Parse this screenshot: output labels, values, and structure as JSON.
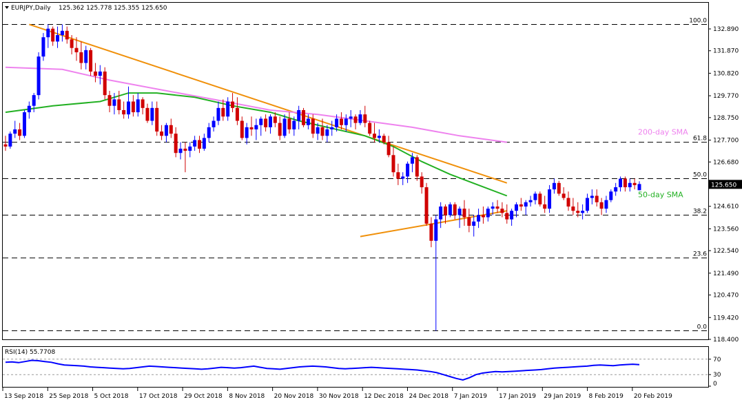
{
  "header": {
    "symbol": "EURJPY,Daily",
    "ohlc": "125.362 125.778 125.355 125.650"
  },
  "colors": {
    "bull": "#0000ff",
    "bear": "#d00000",
    "sma50": "#22b022",
    "sma200": "#ee82ee",
    "trend": "#f0900a",
    "rsi": "#0000ff",
    "last_price_bg": "#000000",
    "last_price_fg": "#ffffff"
  },
  "chart_data": {
    "type": "candlestick",
    "title": "EURJPY,Daily",
    "price_axis": {
      "ylim": [
        118.4,
        133.5
      ],
      "ticks": [
        "132.890",
        "131.870",
        "130.820",
        "129.770",
        "128.750",
        "127.700",
        "126.680",
        "125.630",
        "124.610",
        "123.560",
        "122.540",
        "121.490",
        "120.470",
        "119.420",
        "118.400"
      ]
    },
    "last_price": "125.650",
    "x_tick_labels": [
      "13 Sep 2018",
      "25 Sep 2018",
      "5 Oct 2018",
      "17 Oct 2018",
      "29 Oct 2018",
      "8 Nov 2018",
      "20 Nov 2018",
      "30 Nov 2018",
      "12 Dec 2018",
      "24 Dec 2018",
      "7 Jan 2019",
      "17 Jan 2019",
      "29 Jan 2019",
      "8 Feb 2019",
      "20 Feb 2019"
    ],
    "fibonacci": [
      {
        "label": "100.0",
        "price": 133.1
      },
      {
        "label": "61.8",
        "price": 127.6
      },
      {
        "label": "50.0",
        "price": 125.9
      },
      {
        "label": "38.2",
        "price": 124.2
      },
      {
        "label": "23.6",
        "price": 122.2
      },
      {
        "label": "0.0",
        "price": 118.8
      }
    ],
    "annotations": {
      "sma200": "200-day SMA",
      "sma50": "50-day SMA"
    },
    "trendlines": [
      {
        "from": [
          5,
          133.1
        ],
        "to": [
          106,
          125.7
        ]
      },
      {
        "from": [
          75,
          123.2
        ],
        "to": [
          106,
          124.4
        ]
      }
    ],
    "candles": [
      [
        127.5,
        127.9,
        127.2,
        127.4
      ],
      [
        127.4,
        128.1,
        127.3,
        128.0
      ],
      [
        128.0,
        128.6,
        127.8,
        128.2
      ],
      [
        128.2,
        128.5,
        127.7,
        127.9
      ],
      [
        127.9,
        129.1,
        127.8,
        129.0
      ],
      [
        129.0,
        129.5,
        128.7,
        129.3
      ],
      [
        129.3,
        129.9,
        129.0,
        129.8
      ],
      [
        129.8,
        131.8,
        129.6,
        131.6
      ],
      [
        131.6,
        132.7,
        131.4,
        132.5
      ],
      [
        132.5,
        133.1,
        132.0,
        132.9
      ],
      [
        132.9,
        133.0,
        132.1,
        132.3
      ],
      [
        132.3,
        133.0,
        132.0,
        132.6
      ],
      [
        132.6,
        133.1,
        132.3,
        132.8
      ],
      [
        132.8,
        133.0,
        132.2,
        132.4
      ],
      [
        132.4,
        132.6,
        131.7,
        132.0
      ],
      [
        132.0,
        132.5,
        131.4,
        131.8
      ],
      [
        131.8,
        132.3,
        131.0,
        131.3
      ],
      [
        131.3,
        132.1,
        131.0,
        131.9
      ],
      [
        131.9,
        132.0,
        130.7,
        130.9
      ],
      [
        130.9,
        131.3,
        130.4,
        130.7
      ],
      [
        130.7,
        131.2,
        130.3,
        130.9
      ],
      [
        130.9,
        131.1,
        129.6,
        129.8
      ],
      [
        129.8,
        130.0,
        129.0,
        129.3
      ],
      [
        129.3,
        129.9,
        128.9,
        129.6
      ],
      [
        129.6,
        130.0,
        128.9,
        129.1
      ],
      [
        129.1,
        129.5,
        128.7,
        128.9
      ],
      [
        128.9,
        130.2,
        128.7,
        129.5
      ],
      [
        129.5,
        129.8,
        128.8,
        129.0
      ],
      [
        129.0,
        129.9,
        128.8,
        129.6
      ],
      [
        129.6,
        129.7,
        128.9,
        129.2
      ],
      [
        129.2,
        129.4,
        128.5,
        128.6
      ],
      [
        128.6,
        129.5,
        128.4,
        129.2
      ],
      [
        129.2,
        129.5,
        127.9,
        128.1
      ],
      [
        128.1,
        128.4,
        127.7,
        127.9
      ],
      [
        127.9,
        128.5,
        127.6,
        128.4
      ],
      [
        128.4,
        128.7,
        127.8,
        128.0
      ],
      [
        128.0,
        128.3,
        126.9,
        127.1
      ],
      [
        127.1,
        127.6,
        126.8,
        127.3
      ],
      [
        127.3,
        127.6,
        126.2,
        127.2
      ],
      [
        127.2,
        127.6,
        126.9,
        127.4
      ],
      [
        127.4,
        127.9,
        127.2,
        127.7
      ],
      [
        127.7,
        127.9,
        127.1,
        127.3
      ],
      [
        127.3,
        128.0,
        127.2,
        127.8
      ],
      [
        127.8,
        128.5,
        127.6,
        128.3
      ],
      [
        128.3,
        128.8,
        128.1,
        128.6
      ],
      [
        128.6,
        129.5,
        128.4,
        129.2
      ],
      [
        129.2,
        129.6,
        128.6,
        128.8
      ],
      [
        128.8,
        129.7,
        128.6,
        129.5
      ],
      [
        129.5,
        129.9,
        129.0,
        129.2
      ],
      [
        129.2,
        129.7,
        128.4,
        128.6
      ],
      [
        128.6,
        128.8,
        127.7,
        127.8
      ],
      [
        127.8,
        128.5,
        127.5,
        128.3
      ],
      [
        128.3,
        128.8,
        127.9,
        128.2
      ],
      [
        128.2,
        128.7,
        127.7,
        128.4
      ],
      [
        128.4,
        128.8,
        127.9,
        128.7
      ],
      [
        128.7,
        128.9,
        128.1,
        128.3
      ],
      [
        128.3,
        128.9,
        128.0,
        128.8
      ],
      [
        128.8,
        129.0,
        128.3,
        128.5
      ],
      [
        128.5,
        128.8,
        127.7,
        127.9
      ],
      [
        127.9,
        128.9,
        127.8,
        128.7
      ],
      [
        128.7,
        129.0,
        128.0,
        128.2
      ],
      [
        128.2,
        128.8,
        127.9,
        128.6
      ],
      [
        128.6,
        129.3,
        128.2,
        129.1
      ],
      [
        129.1,
        129.2,
        128.3,
        128.4
      ],
      [
        128.4,
        128.9,
        128.2,
        128.7
      ],
      [
        128.7,
        128.9,
        127.8,
        128.0
      ],
      [
        128.0,
        128.5,
        127.7,
        128.3
      ],
      [
        128.3,
        128.7,
        127.7,
        127.9
      ],
      [
        127.9,
        128.4,
        127.6,
        128.2
      ],
      [
        128.2,
        128.6,
        127.9,
        128.3
      ],
      [
        128.3,
        128.9,
        128.1,
        128.7
      ],
      [
        128.7,
        129.0,
        128.2,
        128.4
      ],
      [
        128.4,
        128.9,
        128.1,
        128.7
      ],
      [
        128.7,
        129.1,
        128.3,
        128.8
      ],
      [
        128.8,
        128.9,
        128.2,
        128.5
      ],
      [
        128.5,
        129.1,
        128.4,
        128.9
      ],
      [
        128.9,
        129.3,
        128.3,
        128.5
      ],
      [
        128.5,
        128.6,
        127.9,
        128.0
      ],
      [
        128.0,
        128.5,
        127.6,
        127.8
      ],
      [
        127.8,
        128.2,
        127.6,
        127.9
      ],
      [
        127.9,
        128.0,
        127.5,
        127.6
      ],
      [
        127.6,
        127.9,
        126.9,
        127.0
      ],
      [
        127.0,
        127.4,
        126.0,
        126.2
      ],
      [
        126.2,
        126.6,
        125.6,
        125.9
      ],
      [
        125.9,
        126.2,
        125.6,
        126.0
      ],
      [
        126.0,
        126.7,
        125.7,
        126.6
      ],
      [
        126.6,
        127.1,
        126.2,
        126.9
      ],
      [
        126.9,
        127.0,
        125.8,
        126.0
      ],
      [
        126.0,
        126.2,
        125.2,
        125.5
      ],
      [
        125.5,
        125.7,
        123.7,
        123.8
      ],
      [
        123.8,
        124.1,
        122.7,
        123.0
      ],
      [
        123.0,
        124.2,
        118.8,
        124.0
      ],
      [
        124.0,
        124.8,
        123.6,
        124.6
      ],
      [
        124.6,
        124.7,
        123.8,
        124.2
      ],
      [
        124.2,
        124.8,
        124.1,
        124.7
      ],
      [
        124.7,
        124.8,
        124.0,
        124.2
      ],
      [
        124.2,
        124.6,
        123.6,
        124.5
      ],
      [
        124.5,
        124.9,
        123.7,
        124.1
      ],
      [
        124.1,
        124.5,
        123.4,
        123.7
      ],
      [
        123.7,
        124.2,
        123.2,
        123.9
      ],
      [
        123.9,
        124.5,
        123.6,
        124.2
      ],
      [
        124.2,
        124.6,
        123.8,
        124.1
      ],
      [
        124.1,
        124.6,
        123.9,
        124.5
      ],
      [
        124.5,
        124.8,
        124.2,
        124.6
      ],
      [
        124.6,
        124.9,
        124.3,
        124.5
      ],
      [
        124.5,
        124.8,
        124.1,
        124.3
      ],
      [
        124.3,
        124.7,
        123.8,
        124.0
      ],
      [
        124.0,
        124.5,
        123.7,
        124.4
      ],
      [
        124.4,
        124.8,
        124.1,
        124.7
      ],
      [
        124.7,
        125.0,
        124.4,
        124.6
      ],
      [
        124.6,
        124.9,
        124.2,
        124.8
      ],
      [
        124.8,
        125.1,
        124.6,
        124.9
      ],
      [
        124.9,
        125.3,
        124.7,
        125.2
      ],
      [
        125.2,
        125.3,
        124.6,
        124.7
      ],
      [
        124.7,
        125.1,
        124.3,
        124.5
      ],
      [
        124.5,
        125.6,
        124.3,
        125.4
      ],
      [
        125.4,
        125.9,
        125.2,
        125.7
      ],
      [
        125.7,
        125.8,
        125.1,
        125.2
      ],
      [
        125.2,
        125.5,
        124.9,
        125.0
      ],
      [
        125.0,
        125.3,
        124.4,
        124.6
      ],
      [
        124.6,
        125.0,
        124.2,
        124.4
      ],
      [
        124.4,
        124.8,
        124.1,
        124.3
      ],
      [
        124.3,
        124.7,
        124.0,
        124.4
      ],
      [
        124.4,
        125.2,
        124.3,
        125.0
      ],
      [
        125.0,
        125.4,
        124.7,
        125.1
      ],
      [
        125.1,
        125.4,
        124.6,
        124.8
      ],
      [
        124.8,
        125.0,
        124.2,
        124.5
      ],
      [
        124.5,
        125.1,
        124.3,
        124.9
      ],
      [
        124.9,
        125.4,
        124.8,
        125.3
      ],
      [
        125.3,
        125.7,
        125.1,
        125.5
      ],
      [
        125.5,
        126.0,
        125.3,
        125.9
      ],
      [
        125.9,
        126.0,
        125.3,
        125.5
      ],
      [
        125.5,
        125.9,
        125.3,
        125.7
      ],
      [
        125.7,
        125.9,
        125.4,
        125.6
      ],
      [
        125.362,
        125.778,
        125.355,
        125.65
      ]
    ],
    "sma50_path": [
      [
        0,
        129.0
      ],
      [
        10,
        129.3
      ],
      [
        20,
        129.5
      ],
      [
        26,
        129.9
      ],
      [
        32,
        129.9
      ],
      [
        40,
        129.7
      ],
      [
        48,
        129.3
      ],
      [
        56,
        129.0
      ],
      [
        62,
        128.6
      ],
      [
        68,
        128.3
      ],
      [
        76,
        127.9
      ],
      [
        82,
        127.4
      ],
      [
        88,
        126.7
      ],
      [
        94,
        126.1
      ],
      [
        100,
        125.6
      ],
      [
        106,
        125.1
      ]
    ],
    "sma200_path": [
      [
        0,
        131.1
      ],
      [
        12,
        131.0
      ],
      [
        22,
        130.5
      ],
      [
        34,
        130.0
      ],
      [
        44,
        129.6
      ],
      [
        56,
        129.1
      ],
      [
        66,
        128.9
      ],
      [
        76,
        128.6
      ],
      [
        86,
        128.3
      ],
      [
        96,
        127.9
      ],
      [
        106,
        127.6
      ]
    ],
    "rsi": {
      "label": "RSI(14) 55.7708",
      "ticks": [
        "70",
        "30",
        "0"
      ],
      "levels": [
        70,
        30
      ],
      "values": [
        62,
        63,
        61,
        64,
        67,
        66,
        64,
        62,
        58,
        55,
        54,
        53,
        52,
        50,
        49,
        48,
        47,
        46,
        45,
        46,
        48,
        50,
        52,
        51,
        50,
        49,
        48,
        47,
        46,
        45,
        44,
        45,
        47,
        49,
        48,
        47,
        48,
        50,
        52,
        49,
        46,
        45,
        44,
        46,
        48,
        50,
        51,
        52,
        51,
        50,
        48,
        46,
        45,
        46,
        47,
        48,
        49,
        48,
        47,
        46,
        45,
        44,
        43,
        42,
        40,
        38,
        35,
        30,
        25,
        20,
        16,
        22,
        30,
        34,
        36,
        38,
        37,
        38,
        39,
        40,
        41,
        42,
        43,
        45,
        47,
        48,
        49,
        50,
        51,
        52,
        54,
        55,
        54,
        53,
        55,
        56,
        57,
        55.77
      ]
    }
  }
}
